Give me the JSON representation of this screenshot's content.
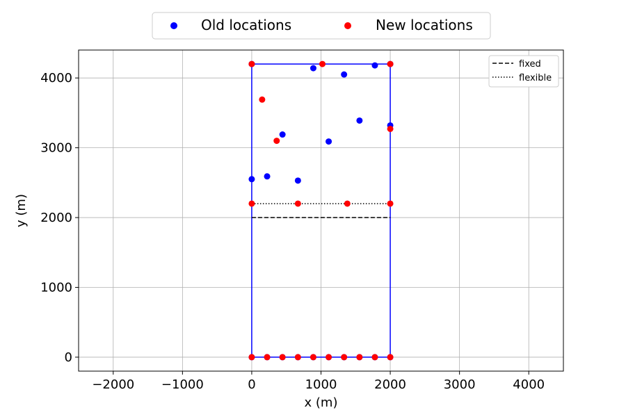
{
  "chart_data": {
    "type": "scatter",
    "xlabel": "x (m)",
    "ylabel": "y (m)",
    "xlim": [
      -2500,
      4500
    ],
    "ylim": [
      -200,
      4400
    ],
    "x_ticks": [
      -2000,
      -1000,
      0,
      1000,
      2000,
      3000,
      4000
    ],
    "x_tick_labels": [
      "−2000",
      "−1000",
      "0",
      "1000",
      "2000",
      "3000",
      "4000"
    ],
    "y_ticks": [
      0,
      1000,
      2000,
      3000,
      4000
    ],
    "y_tick_labels": [
      "0",
      "1000",
      "2000",
      "3000",
      "4000"
    ],
    "grid": true,
    "boundary": {
      "color": "#0000ff",
      "rect": [
        [
          0,
          0
        ],
        [
          2000,
          0
        ],
        [
          2000,
          4200
        ],
        [
          0,
          4200
        ],
        [
          0,
          0
        ]
      ]
    },
    "lines": [
      {
        "name": "fixed",
        "style": "dashed",
        "color": "#000000",
        "x": [
          0,
          2000
        ],
        "y": [
          2000,
          2000
        ]
      },
      {
        "name": "flexible",
        "style": "dotted",
        "color": "#000000",
        "x": [
          0,
          2000
        ],
        "y": [
          2200,
          2200
        ]
      }
    ],
    "series": [
      {
        "name": "Old locations",
        "color": "#0000ff",
        "points": [
          [
            0,
            0
          ],
          [
            222,
            0
          ],
          [
            444,
            0
          ],
          [
            667,
            0
          ],
          [
            889,
            0
          ],
          [
            1111,
            0
          ],
          [
            1333,
            0
          ],
          [
            1556,
            0
          ],
          [
            1778,
            0
          ],
          [
            2000,
            0
          ],
          [
            0,
            2550
          ],
          [
            222,
            2590
          ],
          [
            667,
            2530
          ],
          [
            444,
            3190
          ],
          [
            1111,
            3090
          ],
          [
            1556,
            3390
          ],
          [
            2000,
            3320
          ],
          [
            889,
            4140
          ],
          [
            1333,
            4050
          ],
          [
            1778,
            4180
          ],
          [
            0,
            4200
          ],
          [
            2000,
            4200
          ]
        ]
      },
      {
        "name": "New locations",
        "color": "#ff0000",
        "points": [
          [
            0,
            0
          ],
          [
            222,
            0
          ],
          [
            444,
            0
          ],
          [
            667,
            0
          ],
          [
            889,
            0
          ],
          [
            1111,
            0
          ],
          [
            1333,
            0
          ],
          [
            1556,
            0
          ],
          [
            1778,
            0
          ],
          [
            2000,
            0
          ],
          [
            0,
            2200
          ],
          [
            667,
            2200
          ],
          [
            1380,
            2200
          ],
          [
            2000,
            2200
          ],
          [
            360,
            3100
          ],
          [
            150,
            3690
          ],
          [
            2000,
            3270
          ],
          [
            0,
            4200
          ],
          [
            1020,
            4200
          ],
          [
            2000,
            4200
          ]
        ]
      }
    ],
    "legend_top": {
      "placement": "top-center",
      "entries": [
        "Old locations",
        "New locations"
      ]
    },
    "legend_inner": {
      "placement": "top-right",
      "entries": [
        "fixed",
        "flexible"
      ]
    }
  }
}
